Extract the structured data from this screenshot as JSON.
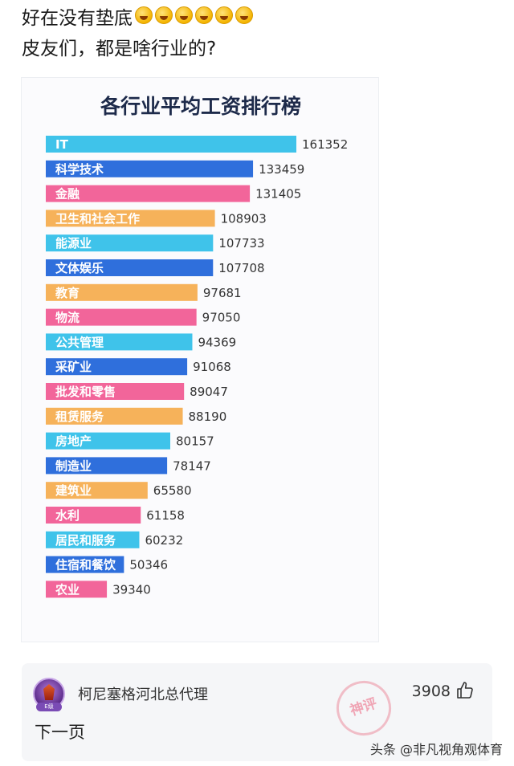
{
  "post": {
    "line1": "好在没有垫底",
    "line1_emoji_count": 6,
    "line2": "皮友们，都是啥行业的?"
  },
  "chart_data": {
    "type": "bar",
    "orientation": "horizontal",
    "title": "各行业平均工资排行榜",
    "categories": [
      "IT",
      "科学技术",
      "金融",
      "卫生和社会工作",
      "能源业",
      "文体娱乐",
      "教育",
      "物流",
      "公共管理",
      "采矿业",
      "批发和零售",
      "租赁服务",
      "房地产",
      "制造业",
      "建筑业",
      "水利",
      "居民和服务",
      "住宿和餐饮",
      "农业"
    ],
    "values": [
      161352,
      133459,
      131405,
      108903,
      107733,
      107708,
      97681,
      97050,
      94369,
      91068,
      89047,
      88190,
      80157,
      78147,
      65580,
      61158,
      60232,
      50346,
      39340
    ],
    "colors": [
      "#3fc3ea",
      "#2f6fdc",
      "#f2659a",
      "#f6b25a",
      "#3fc3ea",
      "#2f6fdc",
      "#f6b25a",
      "#f2659a",
      "#3fc3ea",
      "#2f6fdc",
      "#f2659a",
      "#f6b25a",
      "#3fc3ea",
      "#2f6fdc",
      "#f6b25a",
      "#f2659a",
      "#3fc3ea",
      "#2f6fdc",
      "#f2659a"
    ],
    "xlim": [
      0,
      161352
    ],
    "grid": false,
    "legend": "none"
  },
  "comment": {
    "username": "柯尼塞格河北总代理",
    "likes": "3908",
    "text": "下一页",
    "stamp_text": "神评",
    "avatar_badge": "E级"
  },
  "watermark": "头条 @非凡视角观体育"
}
